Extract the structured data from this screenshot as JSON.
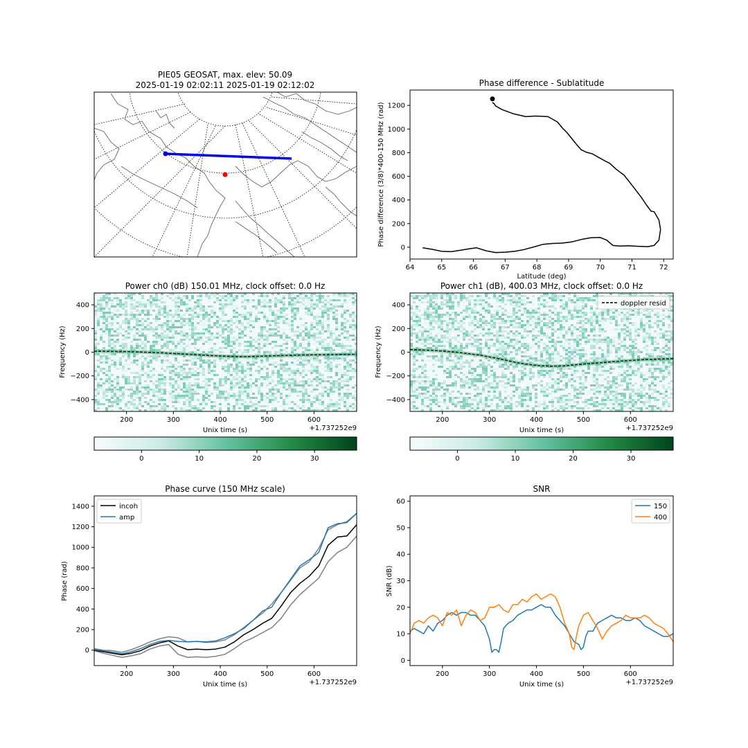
{
  "map_panel": {
    "title_line1": "PIE05 GEOSAT, max. elev: 50.09",
    "title_line2": "2025-01-19 02:02:11 2025-01-19 02:12:02"
  },
  "colorbar": {
    "ticks": [
      "0",
      "10",
      "20",
      "30"
    ],
    "colormap": [
      "#f7fcfd",
      "#e5f5f9",
      "#ccece6",
      "#99d8c9",
      "#66c2a4",
      "#41ae76",
      "#238b45",
      "#006d2c",
      "#00441b"
    ]
  },
  "chart_data": [
    {
      "id": "phase_sublat",
      "type": "line",
      "title": "Phase difference - Sublatitude",
      "xlabel": "Latitude (deg)",
      "ylabel": "Phase difference (3/8)*400-150 MHz (rad)",
      "xlim": [
        64.0,
        72.3
      ],
      "ylim": [
        -100,
        1330
      ],
      "xticks": [
        64,
        65,
        66,
        67,
        68,
        69,
        70,
        71,
        72
      ],
      "yticks": [
        0,
        200,
        400,
        600,
        800,
        1000,
        1200
      ],
      "grid": false,
      "series": [
        {
          "color": "#000000",
          "x": [
            64.4,
            64.7,
            65.0,
            65.3,
            65.6,
            65.9,
            66.1,
            66.4,
            66.7,
            67.0,
            67.3,
            67.6,
            67.9,
            68.2,
            68.5,
            68.8,
            69.1,
            69.4,
            69.7,
            70.0,
            70.2,
            70.4,
            70.6,
            70.9,
            71.2,
            71.5,
            71.7,
            71.85,
            71.9,
            71.85,
            71.7,
            71.6,
            71.45,
            71.3,
            71.1,
            70.9,
            70.75,
            70.5,
            70.3,
            70.15,
            69.95,
            69.75,
            69.55,
            69.4,
            69.25,
            69.1,
            68.95,
            68.8,
            68.65,
            68.35,
            67.95,
            67.65,
            67.25,
            66.9,
            66.7,
            66.65,
            66.6
          ],
          "y": [
            -5,
            -18,
            -35,
            -38,
            -25,
            -12,
            -5,
            -30,
            -45,
            -42,
            -35,
            -20,
            2,
            25,
            32,
            35,
            45,
            65,
            80,
            82,
            60,
            15,
            10,
            12,
            8,
            5,
            15,
            60,
            150,
            230,
            300,
            305,
            360,
            420,
            490,
            560,
            610,
            660,
            710,
            730,
            760,
            790,
            805,
            825,
            870,
            920,
            970,
            1010,
            1060,
            1105,
            1110,
            1105,
            1130,
            1165,
            1195,
            1215,
            1225
          ]
        }
      ],
      "markers": [
        {
          "x": 66.6,
          "y": 1255,
          "color": "#000000"
        }
      ]
    },
    {
      "id": "power_ch0",
      "type": "heatmap",
      "title": "Power ch0 (dB) 150.01 MHz, clock offset: 0.0 Hz",
      "xlabel": "Unix time (s)",
      "ylabel": "Frequency (Hz)",
      "offset_label": "+1.737252e9",
      "xlim": [
        131,
        691
      ],
      "ylim": [
        -500,
        500
      ],
      "xticks": [
        200,
        300,
        400,
        500,
        600
      ],
      "yticks": [
        -400,
        -200,
        0,
        200,
        400
      ],
      "doppler_t": [
        131,
        200,
        260,
        320,
        380,
        420,
        450,
        480,
        520,
        560,
        600,
        640,
        691
      ],
      "doppler_f": [
        8,
        5,
        -3,
        -15,
        -28,
        -35,
        -38,
        -35,
        -30,
        -25,
        -22,
        -20,
        -18
      ]
    },
    {
      "id": "power_ch1",
      "type": "heatmap",
      "title": "Power ch1 (dB), 400.03 MHz, clock offset: 0.0 Hz",
      "xlabel": "Unix time (s)",
      "ylabel": "Frequency (Hz)",
      "offset_label": "+1.737252e9",
      "legend": [
        "doppler resid"
      ],
      "legend_position": "upper-right",
      "xlim": [
        131,
        691
      ],
      "ylim": [
        -500,
        500
      ],
      "xticks": [
        200,
        300,
        400,
        500,
        600
      ],
      "yticks": [
        -400,
        -200,
        0,
        200,
        400
      ],
      "doppler_t": [
        131,
        180,
        230,
        280,
        320,
        360,
        400,
        430,
        460,
        500,
        540,
        580,
        620,
        660,
        691
      ],
      "doppler_f": [
        22,
        15,
        0,
        -25,
        -55,
        -90,
        -112,
        -118,
        -115,
        -100,
        -88,
        -75,
        -65,
        -58,
        -55
      ]
    },
    {
      "id": "phase_curve",
      "type": "line",
      "title": "Phase curve (150 MHz scale)",
      "xlabel": "Unix time (s)",
      "ylabel": "Phase (rad)",
      "offset_label": "+1.737252e9",
      "legend": [
        "incoh",
        "amp"
      ],
      "legend_position": "upper-left",
      "xlim": [
        131,
        691
      ],
      "ylim": [
        -150,
        1500
      ],
      "xticks": [
        200,
        300,
        400,
        500,
        600
      ],
      "yticks": [
        0,
        200,
        400,
        600,
        800,
        1000,
        1200,
        1400
      ],
      "series": [
        {
          "name": "",
          "color": "#808080",
          "x": [
            131,
            150,
            170,
            190,
            210,
            230,
            250,
            270,
            290,
            310,
            330,
            350,
            370,
            390,
            410,
            430,
            450,
            470,
            490,
            510,
            530,
            550,
            570,
            590,
            610,
            630,
            650,
            670,
            691
          ],
          "y": [
            -5,
            -30,
            -50,
            -70,
            -55,
            -35,
            10,
            40,
            55,
            -40,
            -70,
            -65,
            -70,
            -60,
            -40,
            15,
            80,
            120,
            170,
            220,
            310,
            440,
            540,
            620,
            700,
            860,
            950,
            1000,
            1110
          ]
        },
        {
          "name": "",
          "color": "#808080",
          "x": [
            131,
            150,
            170,
            190,
            210,
            230,
            250,
            270,
            290,
            310,
            330,
            350,
            370,
            390,
            410,
            430,
            450,
            470,
            490,
            510,
            530,
            550,
            570,
            590,
            610,
            630,
            650,
            670,
            691
          ],
          "y": [
            15,
            0,
            -5,
            -20,
            5,
            40,
            80,
            110,
            130,
            120,
            80,
            85,
            75,
            80,
            100,
            150,
            220,
            290,
            360,
            450,
            560,
            680,
            800,
            860,
            990,
            1170,
            1220,
            1250,
            1330
          ]
        },
        {
          "name": "incoh",
          "color": "#000000",
          "x": [
            131,
            150,
            170,
            190,
            210,
            230,
            250,
            270,
            290,
            310,
            330,
            350,
            370,
            390,
            410,
            430,
            450,
            470,
            490,
            510,
            530,
            550,
            570,
            590,
            610,
            630,
            650,
            670,
            691
          ],
          "y": [
            0,
            -15,
            -30,
            -45,
            -30,
            -5,
            40,
            70,
            90,
            40,
            5,
            10,
            5,
            10,
            30,
            80,
            150,
            200,
            260,
            310,
            430,
            560,
            650,
            720,
            820,
            1020,
            1100,
            1110,
            1220
          ]
        },
        {
          "name": "amp",
          "color": "#1f77b4",
          "x": [
            131,
            150,
            170,
            190,
            210,
            230,
            250,
            270,
            290,
            310,
            330,
            350,
            370,
            390,
            410,
            430,
            450,
            470,
            490,
            510,
            530,
            550,
            570,
            590,
            610,
            630,
            650,
            670,
            691
          ],
          "y": [
            5,
            -5,
            -20,
            -35,
            -15,
            15,
            55,
            85,
            95,
            85,
            80,
            85,
            80,
            90,
            120,
            160,
            210,
            290,
            380,
            420,
            560,
            690,
            820,
            880,
            950,
            1190,
            1230,
            1240,
            1330
          ]
        }
      ]
    },
    {
      "id": "snr",
      "type": "line",
      "title": "SNR",
      "xlabel": "Unix time (s)",
      "ylabel": "SNR (dB)",
      "offset_label": "+1.737252e9",
      "legend": [
        "150",
        "400"
      ],
      "legend_position": "upper-right",
      "xlim": [
        131,
        691
      ],
      "ylim": [
        -2,
        62
      ],
      "xticks": [
        200,
        300,
        400,
        500,
        600
      ],
      "yticks": [
        0,
        10,
        20,
        30,
        40,
        50,
        60
      ],
      "series": [
        {
          "name": "150",
          "color": "#1f77b4",
          "x": [
            131,
            140,
            150,
            160,
            170,
            180,
            190,
            200,
            210,
            220,
            230,
            240,
            250,
            260,
            270,
            280,
            290,
            300,
            305,
            310,
            315,
            320,
            325,
            330,
            340,
            350,
            360,
            370,
            380,
            390,
            400,
            410,
            420,
            430,
            440,
            450,
            460,
            470,
            480,
            490,
            495,
            500,
            505,
            510,
            520,
            530,
            540,
            550,
            560,
            570,
            580,
            590,
            600,
            610,
            620,
            630,
            640,
            650,
            660,
            670,
            680,
            691
          ],
          "y": [
            11,
            12,
            11,
            10,
            13,
            11,
            14,
            15,
            17,
            18,
            17,
            18,
            18,
            17,
            17,
            15,
            13,
            8,
            3,
            4,
            4,
            3,
            7,
            12,
            14,
            15,
            17,
            18,
            19,
            19,
            20,
            21,
            20,
            20,
            17,
            15,
            13,
            10,
            7,
            6,
            4,
            5,
            9,
            11,
            11,
            14,
            15,
            16,
            17,
            16,
            16,
            15,
            15,
            16,
            15,
            13,
            12,
            11,
            10,
            9,
            9,
            10
          ]
        },
        {
          "name": "400",
          "color": "#ff7f0e",
          "x": [
            131,
            140,
            150,
            160,
            170,
            180,
            190,
            200,
            210,
            220,
            230,
            240,
            250,
            260,
            270,
            280,
            290,
            300,
            310,
            320,
            330,
            340,
            350,
            360,
            370,
            380,
            390,
            400,
            410,
            420,
            430,
            440,
            450,
            460,
            470,
            475,
            480,
            485,
            490,
            500,
            510,
            520,
            530,
            540,
            550,
            560,
            570,
            580,
            590,
            600,
            610,
            620,
            630,
            640,
            650,
            660,
            670,
            680,
            691
          ],
          "y": [
            10,
            14,
            15,
            14,
            16,
            17,
            16,
            13,
            18,
            17,
            19,
            13,
            17,
            19,
            18,
            15,
            16,
            20,
            20,
            21,
            19,
            18,
            21,
            21,
            23,
            22,
            24,
            25,
            23,
            24,
            25,
            24,
            20,
            14,
            10,
            5,
            4,
            9,
            13,
            17,
            18,
            15,
            12,
            8,
            11,
            13,
            14,
            15,
            17,
            16,
            16,
            16,
            17,
            16,
            14,
            13,
            12,
            10,
            7
          ]
        }
      ]
    }
  ]
}
